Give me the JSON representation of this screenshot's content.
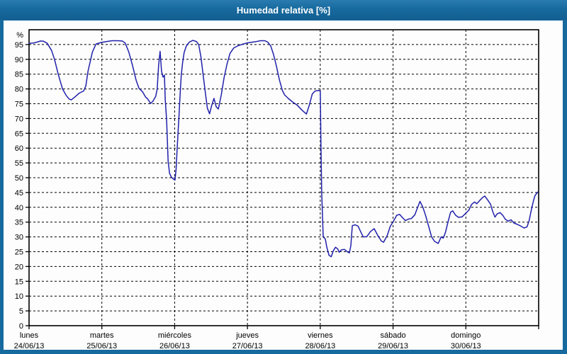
{
  "window": {
    "title": "Humedad relativa [%]",
    "titlebar_color": "#176a9e",
    "panel_color": "#fdfdfd"
  },
  "chart_data": {
    "type": "line",
    "title": "Humedad relativa [%]",
    "ylabel": "%",
    "ylim": [
      0,
      100
    ],
    "yticks": [
      0,
      5,
      10,
      15,
      20,
      25,
      30,
      35,
      40,
      45,
      50,
      55,
      60,
      65,
      70,
      75,
      80,
      85,
      90,
      95
    ],
    "grid": "dashed",
    "legend": "none",
    "line_color": "#2121ab",
    "axis_color": "#000000",
    "x_days": [
      {
        "name": "lunes",
        "date": "24/06/13"
      },
      {
        "name": "martes",
        "date": "25/06/13"
      },
      {
        "name": "miércoles",
        "date": "26/06/13"
      },
      {
        "name": "jueves",
        "date": "27/06/13"
      },
      {
        "name": "viernes",
        "date": "28/06/13"
      },
      {
        "name": "sábado",
        "date": "29/06/13"
      },
      {
        "name": "domingo",
        "date": "30/06/13"
      }
    ],
    "x_range_days": [
      0,
      7
    ],
    "series": [
      {
        "name": "Humedad relativa [%]",
        "points": [
          [
            0.0,
            95.4
          ],
          [
            0.06,
            95.5
          ],
          [
            0.12,
            95.9
          ],
          [
            0.16,
            96.2
          ],
          [
            0.2,
            96.1
          ],
          [
            0.25,
            95.4
          ],
          [
            0.31,
            93.0
          ],
          [
            0.35,
            90.0
          ],
          [
            0.4,
            85.0
          ],
          [
            0.46,
            80.0
          ],
          [
            0.51,
            77.8
          ],
          [
            0.55,
            76.6
          ],
          [
            0.58,
            76.3
          ],
          [
            0.63,
            77.3
          ],
          [
            0.69,
            78.6
          ],
          [
            0.75,
            79.3
          ],
          [
            0.78,
            81.0
          ],
          [
            0.81,
            86.0
          ],
          [
            0.87,
            92.5
          ],
          [
            0.92,
            95.2
          ],
          [
            0.99,
            95.7
          ],
          [
            1.06,
            96.0
          ],
          [
            1.14,
            96.3
          ],
          [
            1.22,
            96.3
          ],
          [
            1.28,
            96.2
          ],
          [
            1.32,
            95.5
          ],
          [
            1.37,
            92.5
          ],
          [
            1.42,
            88.0
          ],
          [
            1.47,
            83.0
          ],
          [
            1.51,
            80.2
          ],
          [
            1.56,
            79.0
          ],
          [
            1.6,
            77.3
          ],
          [
            1.63,
            76.6
          ],
          [
            1.67,
            75.1
          ],
          [
            1.7,
            75.8
          ],
          [
            1.74,
            77.5
          ],
          [
            1.76,
            80.0
          ],
          [
            1.78,
            88.0
          ],
          [
            1.8,
            92.7
          ],
          [
            1.82,
            86.0
          ],
          [
            1.84,
            84.0
          ],
          [
            1.86,
            84.7
          ],
          [
            1.87,
            76.6
          ],
          [
            1.89,
            69.4
          ],
          [
            1.91,
            55.7
          ],
          [
            1.93,
            51.5
          ],
          [
            1.955,
            50.2
          ],
          [
            1.985,
            49.5
          ],
          [
            2.005,
            49.2
          ],
          [
            2.02,
            53.0
          ],
          [
            2.035,
            60.0
          ],
          [
            2.055,
            69.0
          ],
          [
            2.075,
            78.0
          ],
          [
            2.09,
            84.5
          ],
          [
            2.11,
            89.0
          ],
          [
            2.13,
            92.3
          ],
          [
            2.16,
            94.5
          ],
          [
            2.2,
            95.8
          ],
          [
            2.25,
            96.4
          ],
          [
            2.3,
            96.0
          ],
          [
            2.33,
            95.0
          ],
          [
            2.36,
            91.0
          ],
          [
            2.39,
            85.0
          ],
          [
            2.42,
            79.0
          ],
          [
            2.45,
            73.5
          ],
          [
            2.48,
            71.6
          ],
          [
            2.51,
            74.5
          ],
          [
            2.54,
            76.8
          ],
          [
            2.57,
            74.0
          ],
          [
            2.6,
            73.2
          ],
          [
            2.64,
            78.0
          ],
          [
            2.68,
            84.0
          ],
          [
            2.72,
            88.5
          ],
          [
            2.76,
            92.0
          ],
          [
            2.81,
            93.8
          ],
          [
            2.87,
            94.6
          ],
          [
            2.93,
            95.1
          ],
          [
            2.99,
            95.5
          ],
          [
            3.06,
            95.8
          ],
          [
            3.12,
            96.0
          ],
          [
            3.18,
            96.3
          ],
          [
            3.24,
            96.3
          ],
          [
            3.28,
            95.8
          ],
          [
            3.32,
            94.5
          ],
          [
            3.36,
            91.5
          ],
          [
            3.4,
            87.5
          ],
          [
            3.44,
            83.0
          ],
          [
            3.48,
            79.5
          ],
          [
            3.51,
            78.0
          ],
          [
            3.56,
            76.8
          ],
          [
            3.62,
            75.6
          ],
          [
            3.68,
            74.6
          ],
          [
            3.75,
            72.8
          ],
          [
            3.81,
            71.5
          ],
          [
            3.85,
            74.5
          ],
          [
            3.89,
            78.3
          ],
          [
            3.93,
            79.3
          ],
          [
            3.98,
            79.5
          ],
          [
            4.0,
            79.3
          ],
          [
            4.01,
            60.0
          ],
          [
            4.02,
            45.0
          ],
          [
            4.03,
            38.0
          ],
          [
            4.04,
            30.0
          ],
          [
            4.07,
            29.3
          ],
          [
            4.09,
            26.5
          ],
          [
            4.12,
            23.8
          ],
          [
            4.15,
            23.3
          ],
          [
            4.18,
            25.3
          ],
          [
            4.21,
            26.5
          ],
          [
            4.24,
            25.9
          ],
          [
            4.26,
            24.8
          ],
          [
            4.29,
            25.6
          ],
          [
            4.33,
            25.8
          ],
          [
            4.37,
            25.0
          ],
          [
            4.4,
            24.6
          ],
          [
            4.42,
            27.0
          ],
          [
            4.44,
            33.8
          ],
          [
            4.48,
            34.1
          ],
          [
            4.52,
            33.6
          ],
          [
            4.56,
            31.5
          ],
          [
            4.59,
            30.0
          ],
          [
            4.64,
            30.1
          ],
          [
            4.69,
            31.8
          ],
          [
            4.74,
            32.8
          ],
          [
            4.79,
            30.5
          ],
          [
            4.84,
            28.6
          ],
          [
            4.87,
            28.2
          ],
          [
            4.92,
            30.5
          ],
          [
            4.96,
            33.5
          ],
          [
            5.01,
            35.5
          ],
          [
            5.05,
            37.3
          ],
          [
            5.09,
            37.6
          ],
          [
            5.13,
            36.5
          ],
          [
            5.17,
            35.5
          ],
          [
            5.21,
            36.0
          ],
          [
            5.25,
            36.2
          ],
          [
            5.3,
            37.5
          ],
          [
            5.33,
            39.5
          ],
          [
            5.37,
            42.0
          ],
          [
            5.41,
            40.0
          ],
          [
            5.45,
            37.0
          ],
          [
            5.49,
            33.5
          ],
          [
            5.53,
            30.0
          ],
          [
            5.57,
            28.5
          ],
          [
            5.62,
            27.8
          ],
          [
            5.66,
            30.0
          ],
          [
            5.69,
            29.6
          ],
          [
            5.72,
            31.5
          ],
          [
            5.76,
            35.5
          ],
          [
            5.79,
            38.3
          ],
          [
            5.82,
            38.8
          ],
          [
            5.86,
            37.3
          ],
          [
            5.9,
            36.6
          ],
          [
            5.95,
            36.8
          ],
          [
            5.99,
            37.8
          ],
          [
            6.04,
            39.0
          ],
          [
            6.08,
            41.0
          ],
          [
            6.12,
            41.8
          ],
          [
            6.15,
            41.2
          ],
          [
            6.19,
            42.3
          ],
          [
            6.23,
            43.3
          ],
          [
            6.26,
            43.8
          ],
          [
            6.3,
            42.5
          ],
          [
            6.34,
            41.0
          ],
          [
            6.37,
            38.5
          ],
          [
            6.4,
            36.7
          ],
          [
            6.43,
            37.8
          ],
          [
            6.47,
            38.2
          ],
          [
            6.51,
            37.2
          ],
          [
            6.54,
            36.0
          ],
          [
            6.58,
            35.3
          ],
          [
            6.62,
            35.8
          ],
          [
            6.66,
            34.7
          ],
          [
            6.71,
            34.2
          ],
          [
            6.76,
            33.6
          ],
          [
            6.8,
            33.0
          ],
          [
            6.84,
            33.4
          ],
          [
            6.87,
            35.5
          ],
          [
            6.89,
            38.0
          ],
          [
            6.91,
            40.3
          ],
          [
            6.93,
            42.3
          ],
          [
            6.95,
            44.0
          ],
          [
            6.97,
            44.6
          ],
          [
            6.99,
            45.2
          ]
        ]
      }
    ]
  }
}
